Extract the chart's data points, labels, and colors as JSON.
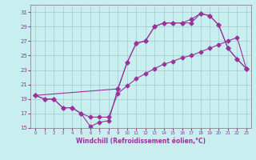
{
  "xlabel": "Windchill (Refroidissement éolien,°C)",
  "bg_color": "#c8eef0",
  "line_color": "#993399",
  "grid_color": "#a0cccc",
  "xlim": [
    -0.5,
    23.5
  ],
  "ylim": [
    15,
    32
  ],
  "xticks": [
    0,
    1,
    2,
    3,
    4,
    5,
    6,
    7,
    8,
    9,
    10,
    11,
    12,
    13,
    14,
    15,
    16,
    17,
    18,
    19,
    20,
    21,
    22,
    23
  ],
  "yticks": [
    15,
    17,
    19,
    21,
    23,
    25,
    27,
    29,
    31
  ],
  "curve1_x": [
    0,
    1,
    2,
    3,
    4,
    5,
    6,
    7,
    8,
    9,
    10,
    11,
    12,
    13,
    14,
    15,
    16,
    17,
    18,
    19,
    20,
    21,
    22,
    23
  ],
  "curve1_y": [
    19.5,
    19.0,
    19.0,
    17.8,
    17.8,
    17.0,
    15.2,
    15.8,
    16.0,
    20.4,
    24.0,
    26.7,
    27.0,
    29.0,
    29.5,
    29.5,
    29.5,
    29.5,
    30.8,
    30.5,
    29.2,
    26.0,
    24.5,
    23.2
  ],
  "curve2_x": [
    0,
    1,
    2,
    3,
    4,
    5,
    6,
    7,
    8,
    9,
    10,
    11,
    12,
    13,
    14,
    15,
    16,
    17,
    18,
    19,
    20,
    21,
    22,
    23
  ],
  "curve2_y": [
    19.5,
    19.0,
    19.0,
    17.8,
    17.8,
    17.0,
    16.5,
    16.5,
    16.5,
    19.8,
    20.8,
    21.8,
    22.5,
    23.2,
    23.8,
    24.2,
    24.7,
    25.0,
    25.5,
    26.0,
    26.5,
    27.0,
    27.5,
    23.2
  ],
  "curve3_x": [
    0,
    9,
    10,
    11,
    12,
    13,
    14,
    15,
    16,
    17,
    18,
    19,
    20,
    21,
    22,
    23
  ],
  "curve3_y": [
    19.5,
    20.4,
    24.0,
    26.7,
    27.0,
    29.0,
    29.5,
    29.5,
    29.5,
    30.0,
    30.8,
    30.5,
    29.2,
    26.0,
    24.5,
    23.2
  ]
}
